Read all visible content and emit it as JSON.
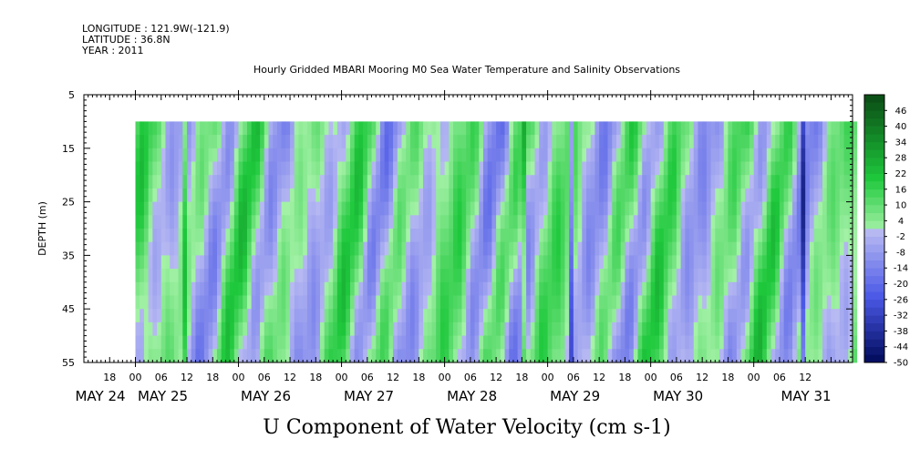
{
  "header": {
    "longitude": "LONGITUDE : 121.9W(-121.9)",
    "latitude": "LATITUDE : 36.8N",
    "year": "YEAR : 2011"
  },
  "chart_data": {
    "type": "heatmap",
    "title": "Hourly Gridded MBARI Mooring M0 Sea Water Temperature and Salinity Observations",
    "variable_title": "U Component of Water Velocity (cm s-1)",
    "ylabel": "DEPTH (m)",
    "xlabel": "",
    "y_axis": {
      "ylim": [
        5,
        55
      ],
      "inverted": true,
      "ticks": [
        "5",
        "15",
        "25",
        "35",
        "45",
        "55"
      ]
    },
    "x_axis": {
      "hour_ticks": [
        "18",
        "00",
        "06",
        "12",
        "18",
        "00",
        "06",
        "12",
        "18",
        "00",
        "06",
        "12",
        "18",
        "00",
        "06",
        "12",
        "18",
        "00",
        "06",
        "12",
        "18",
        "00",
        "06",
        "12",
        "18",
        "00",
        "06",
        "12"
      ],
      "day_labels": [
        "MAY 24",
        "MAY 25",
        "MAY 26",
        "MAY 27",
        "MAY 28",
        "MAY 29",
        "MAY 30",
        "MAY 31"
      ],
      "start": "2011-05-24 12:00",
      "end": "2011-05-31 23:00"
    },
    "data_extent": {
      "start": "2011-05-25 00:00",
      "end": "2011-05-31 23:00",
      "depth_top": 10,
      "depth_bottom": 55
    },
    "colorbar": {
      "labels": [
        "46",
        "40",
        "34",
        "28",
        "22",
        "16",
        "10",
        "4",
        "-2",
        "-8",
        "-14",
        "-20",
        "-26",
        "-32",
        "-38",
        "-44",
        "-50"
      ],
      "range": [
        -50,
        52
      ],
      "step": 3
    },
    "colors": {
      "positive_dark": "#0a4a14",
      "positive_mid": "#1ec83c",
      "positive_light": "#a6f2a8",
      "negative_light": "#b8baf2",
      "negative_mid": "#4a58e6",
      "negative_dark": "#000a5a"
    }
  }
}
